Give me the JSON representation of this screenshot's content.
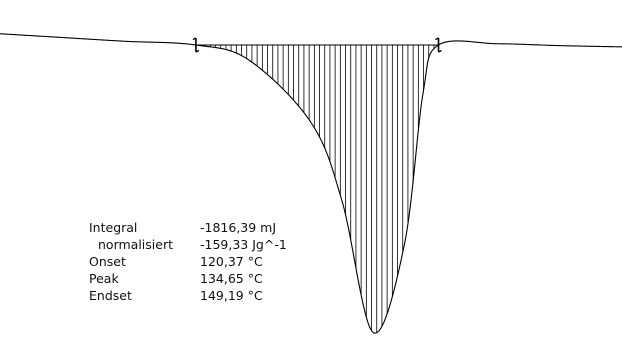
{
  "chart_data": {
    "type": "line",
    "title": "",
    "xlabel": "",
    "ylabel": "",
    "grid": false,
    "legend": "none",
    "curve_color": "#000000",
    "integration_limits_x": [
      -0.37,
      0.41
    ],
    "baseline": [
      [
        -0.37,
        0
      ],
      [
        0.41,
        0
      ]
    ],
    "series": [
      {
        "x": [
          -1.0,
          -0.8,
          -0.6,
          -0.37,
          -0.2,
          0.0,
          0.1,
          0.2,
          0.3,
          0.36,
          0.41,
          0.6,
          0.8,
          1.0
        ],
        "y": [
          0.9,
          0.6,
          0.3,
          0.0,
          -1.2,
          -6.2,
          -12.5,
          -23.0,
          -16.0,
          -3.9,
          0.0,
          0.1,
          -0.05,
          -0.15
        ]
      }
    ],
    "results": [
      {
        "label": "Integral",
        "value": "-1816,39 mJ"
      },
      {
        "label": "normalisiert",
        "value": "-159,33 Jg^-1"
      },
      {
        "label": "Onset",
        "value": "120,37 °C"
      },
      {
        "label": "Peak",
        "value": "134,65 °C"
      },
      {
        "label": "Endset",
        "value": "149,19 °C"
      }
    ]
  }
}
